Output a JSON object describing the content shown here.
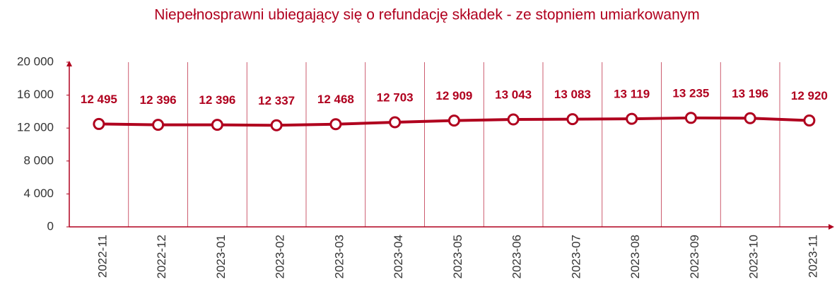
{
  "chart_data": {
    "type": "line",
    "title": "Niepełnosprawni ubiegający się o refundację składek - ze stopniem umiarkowanym",
    "categories": [
      "2022-11",
      "2022-12",
      "2023-01",
      "2023-02",
      "2023-03",
      "2023-04",
      "2023-05",
      "2023-06",
      "2023-07",
      "2023-08",
      "2023-09",
      "2023-10",
      "2023-11"
    ],
    "series": [
      {
        "name": "Niepełnosprawni",
        "color": "#b0001e",
        "values": [
          12495,
          12396,
          12396,
          12337,
          12468,
          12703,
          12909,
          13043,
          13083,
          13119,
          13235,
          13196,
          12920
        ],
        "value_labels": [
          "12 495",
          "12 396",
          "12 396",
          "12 337",
          "12 468",
          "12 703",
          "12 909",
          "13 043",
          "13 083",
          "13 119",
          "13 235",
          "13 196",
          "12 920"
        ]
      }
    ],
    "ylim": [
      0,
      20000
    ],
    "yticks": [
      0,
      {
        "value": 4000,
        "label": "4 000"
      },
      {
        "value": 8000,
        "label": "8 000"
      },
      {
        "value": 12000,
        "label": "12 000"
      },
      {
        "value": 16000,
        "label": "16 000"
      },
      {
        "value": 20000,
        "label": "20 000"
      }
    ]
  }
}
